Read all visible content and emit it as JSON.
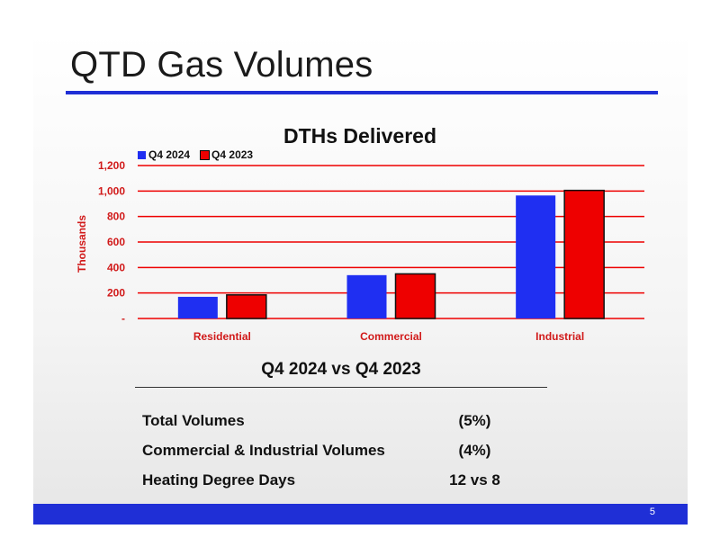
{
  "slide": {
    "title": "QTD Gas Volumes",
    "page_number": "5"
  },
  "colors": {
    "accent_blue": "#1f2fd6",
    "series_blue": "#1f2ff2",
    "series_red": "#ee0000",
    "axis_label_red": "#d11a1a"
  },
  "chart_data": {
    "type": "bar",
    "title": "DTHs Delivered",
    "categories": [
      "Residential",
      "Commercial",
      "Industrial"
    ],
    "series": [
      {
        "name": "Q4 2024",
        "values": [
          170,
          340,
          965
        ]
      },
      {
        "name": "Q4 2023",
        "values": [
          185,
          350,
          1005
        ]
      }
    ],
    "ylabel": "Thousands",
    "xlabel": "",
    "ylim": [
      0,
      1200
    ],
    "yticks": [
      0,
      200,
      400,
      600,
      800,
      1000,
      1200
    ],
    "ytick_labels": [
      "-",
      "200",
      "400",
      "600",
      "800",
      "1,000",
      "1,200"
    ],
    "grid": true,
    "legend_position": "top-left"
  },
  "summary": {
    "heading": "Q4 2024 vs Q4 2023",
    "rows": [
      {
        "label": "Total Volumes",
        "value": "(5%)"
      },
      {
        "label": "Commercial & Industrial Volumes",
        "value": "(4%)"
      },
      {
        "label": "Heating Degree Days",
        "value": "12 vs 8"
      }
    ]
  }
}
